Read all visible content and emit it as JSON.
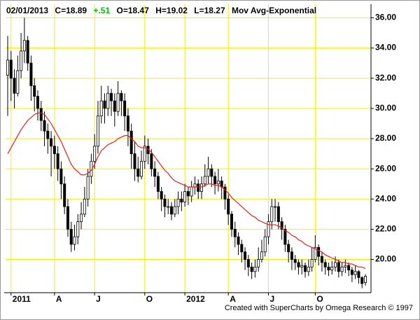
{
  "chart_data": {
    "type": "candlestick",
    "header": {
      "date": "02/01/2013",
      "close": "C=18.89",
      "change": "+.51",
      "open": "O=18.47",
      "high": "H=19.02",
      "low": "L=18.27"
    },
    "change_color": "#00c000",
    "credit": "Created with SuperCharts by Omega Research © 1997",
    "categories": [
      null,
      "2011",
      null,
      null,
      null,
      null,
      null,
      null,
      null,
      null,
      null,
      null,
      null,
      null,
      "A",
      null,
      null,
      null,
      null,
      null,
      null,
      null,
      null,
      null,
      null,
      null,
      "J",
      null,
      null,
      null,
      null,
      null,
      null,
      null,
      null,
      null,
      null,
      null,
      null,
      null,
      null,
      "O",
      null,
      null,
      null,
      null,
      null,
      null,
      null,
      null,
      null,
      null,
      null,
      "2012",
      null,
      null,
      null,
      null,
      null,
      null,
      null,
      null,
      null,
      null,
      null,
      null,
      "A",
      null,
      null,
      null,
      null,
      null,
      null,
      null,
      null,
      null,
      null,
      null,
      "J",
      null,
      null,
      null,
      null,
      null,
      null,
      null,
      null,
      null,
      null,
      null,
      null,
      null,
      "O",
      null,
      null,
      null,
      null,
      null,
      null,
      null,
      null,
      null,
      null,
      null,
      null,
      null,
      null,
      null
    ],
    "open": [
      32.2,
      33.2,
      32.0,
      31.0,
      32.5,
      33.8,
      34.5,
      33.0,
      31.5,
      30.8,
      30.0,
      29.2,
      28.5,
      28.0,
      27.5,
      27.0,
      26.0,
      25.0,
      23.5,
      22.0,
      21.0,
      21.5,
      22.5,
      23.0,
      24.0,
      25.5,
      26.5,
      27.5,
      29.5,
      30.5,
      30.0,
      31.0,
      30.5,
      29.8,
      31.0,
      30.5,
      29.5,
      28.5,
      27.0,
      26.0,
      25.5,
      26.5,
      27.5,
      27.0,
      26.0,
      25.5,
      24.5,
      24.0,
      23.5,
      23.5,
      23.0,
      23.5,
      24.0,
      23.8,
      24.5,
      24.2,
      24.8,
      25.0,
      24.5,
      25.0,
      25.5,
      26.0,
      25.5,
      25.0,
      25.2,
      24.8,
      24.0,
      23.0,
      22.0,
      21.5,
      21.0,
      20.5,
      20.0,
      19.5,
      19.2,
      19.5,
      20.0,
      20.5,
      21.5,
      22.5,
      23.5,
      23.5,
      22.5,
      22.0,
      21.0,
      20.5,
      20.0,
      19.8,
      19.5,
      19.6,
      19.2,
      19.5,
      20.0,
      20.8,
      20.2,
      19.8,
      19.5,
      19.3,
      19.5,
      19.8,
      19.2,
      19.5,
      19.6,
      19.3,
      19.0,
      19.2,
      18.8,
      18.47
    ],
    "high": [
      34.8,
      33.8,
      32.6,
      33.5,
      35.0,
      36.0,
      34.8,
      33.5,
      32.0,
      31.2,
      30.5,
      29.8,
      29.0,
      28.5,
      28.2,
      27.5,
      26.5,
      25.5,
      24.0,
      22.5,
      22.3,
      23.0,
      23.8,
      24.8,
      26.0,
      27.0,
      28.3,
      30.5,
      31.5,
      31.0,
      31.5,
      31.3,
      31.0,
      31.8,
      31.2,
      31.0,
      30.0,
      29.0,
      27.8,
      26.8,
      27.2,
      28.2,
      28.0,
      27.3,
      26.5,
      25.8,
      24.8,
      24.3,
      24.0,
      23.8,
      24.0,
      24.5,
      24.5,
      25.0,
      24.8,
      25.2,
      25.5,
      25.3,
      25.5,
      26.3,
      26.8,
      26.3,
      25.8,
      26.0,
      25.5,
      25.0,
      24.3,
      23.2,
      22.5,
      21.8,
      21.3,
      20.8,
      20.3,
      19.8,
      20.0,
      20.8,
      21.3,
      22.0,
      23.0,
      24.0,
      24.0,
      23.8,
      22.8,
      22.3,
      21.3,
      20.8,
      20.3,
      20.0,
      20.0,
      19.8,
      20.0,
      20.8,
      21.6,
      21.0,
      20.5,
      20.0,
      19.8,
      19.9,
      20.2,
      20.0,
      19.8,
      20.0,
      19.8,
      19.5,
      19.6,
      19.3,
      18.9,
      19.02
    ],
    "low": [
      29.5,
      30.5,
      30.0,
      30.8,
      32.0,
      33.0,
      32.5,
      30.5,
      29.8,
      29.2,
      28.5,
      27.5,
      27.0,
      25.5,
      26.0,
      25.2,
      24.0,
      23.0,
      21.5,
      20.5,
      20.6,
      21.0,
      22.0,
      22.8,
      23.5,
      25.0,
      26.0,
      27.0,
      29.0,
      29.0,
      29.5,
      29.5,
      28.8,
      29.5,
      29.5,
      28.5,
      27.5,
      26.0,
      25.2,
      25.1,
      25.3,
      26.0,
      26.3,
      25.5,
      24.8,
      24.0,
      23.2,
      22.8,
      23.0,
      22.6,
      22.8,
      23.0,
      23.2,
      23.5,
      23.6,
      23.8,
      24.3,
      24.0,
      24.0,
      24.8,
      25.0,
      24.8,
      24.3,
      24.5,
      24.0,
      23.3,
      22.3,
      21.5,
      20.8,
      20.3,
      19.8,
      19.3,
      18.9,
      18.7,
      18.8,
      19.2,
      19.8,
      20.2,
      21.0,
      22.0,
      22.5,
      22.0,
      21.3,
      20.5,
      19.8,
      19.3,
      19.3,
      19.0,
      19.0,
      18.8,
      18.9,
      19.2,
      19.8,
      19.6,
      19.2,
      19.0,
      18.9,
      19.0,
      19.2,
      18.8,
      18.9,
      19.1,
      18.9,
      18.5,
      18.7,
      18.4,
      18.1,
      18.27
    ],
    "close": [
      33.2,
      32.0,
      31.0,
      32.5,
      33.8,
      34.5,
      33.0,
      31.5,
      30.8,
      30.0,
      29.2,
      28.5,
      28.0,
      27.5,
      27.0,
      26.0,
      25.0,
      23.5,
      22.0,
      21.0,
      21.5,
      22.5,
      23.0,
      24.0,
      25.5,
      26.5,
      27.5,
      29.5,
      30.5,
      30.0,
      31.0,
      30.5,
      29.8,
      31.0,
      30.5,
      29.5,
      28.5,
      27.0,
      26.0,
      25.5,
      26.5,
      27.5,
      27.0,
      26.0,
      25.5,
      24.5,
      24.0,
      23.5,
      23.5,
      23.0,
      23.5,
      24.0,
      23.8,
      24.5,
      24.2,
      24.8,
      25.0,
      24.5,
      25.0,
      25.5,
      26.0,
      25.5,
      25.0,
      25.2,
      24.8,
      24.0,
      23.0,
      22.0,
      21.5,
      21.0,
      20.5,
      20.0,
      19.5,
      19.2,
      19.5,
      20.0,
      20.5,
      21.5,
      22.5,
      23.5,
      23.5,
      22.5,
      22.0,
      21.0,
      20.5,
      20.0,
      19.8,
      19.5,
      19.6,
      19.2,
      19.5,
      20.0,
      20.8,
      20.2,
      19.8,
      19.5,
      19.3,
      19.5,
      19.8,
      19.2,
      19.5,
      19.6,
      19.3,
      19.0,
      19.2,
      18.8,
      18.4,
      18.89
    ],
    "up_color": "#ffffff",
    "down_color": "#000000",
    "moving_average": {
      "name": "Mov Avg-Exponential",
      "color": "#e02020",
      "values": [
        27.0,
        27.4,
        27.8,
        28.2,
        28.6,
        28.9,
        29.2,
        29.4,
        29.6,
        29.7,
        29.7,
        29.6,
        29.3,
        29.0,
        28.6,
        28.2,
        27.8,
        27.3,
        26.8,
        26.3,
        26.0,
        25.8,
        25.6,
        25.6,
        25.7,
        25.9,
        26.3,
        26.8,
        27.2,
        27.4,
        27.6,
        27.7,
        27.8,
        28.0,
        28.1,
        28.2,
        28.2,
        28.0,
        27.8,
        27.5,
        27.4,
        27.4,
        27.3,
        27.1,
        26.8,
        26.5,
        26.2,
        25.9,
        25.7,
        25.4,
        25.2,
        25.1,
        25.0,
        24.9,
        24.8,
        24.8,
        24.8,
        24.8,
        24.8,
        24.9,
        25.0,
        25.0,
        24.9,
        24.9,
        24.8,
        24.6,
        24.4,
        24.1,
        23.9,
        23.7,
        23.5,
        23.3,
        23.1,
        22.9,
        22.8,
        22.6,
        22.5,
        22.4,
        22.3,
        22.3,
        22.3,
        22.2,
        22.1,
        21.9,
        21.8,
        21.6,
        21.5,
        21.3,
        21.2,
        21.0,
        20.9,
        20.8,
        20.7,
        20.6,
        20.5,
        20.3,
        20.2,
        20.1,
        20.0,
        19.9,
        19.8,
        19.8,
        19.7,
        19.7,
        19.6,
        19.5,
        19.5,
        19.4
      ]
    },
    "ylim": [
      17.8,
      36.9
    ],
    "yticks": [
      {
        "value": 20,
        "label": "20.00"
      },
      {
        "value": 22,
        "label": "22.00"
      },
      {
        "value": 24,
        "label": "24.00"
      },
      {
        "value": 26,
        "label": "26.00"
      },
      {
        "value": 28,
        "label": "28.00"
      },
      {
        "value": 30,
        "label": "30.00"
      },
      {
        "value": 32,
        "label": "32.00"
      },
      {
        "value": 34,
        "label": "34.00"
      },
      {
        "value": 36,
        "label": "36.00"
      }
    ],
    "grid": true,
    "grid_color": "#f0f000"
  }
}
